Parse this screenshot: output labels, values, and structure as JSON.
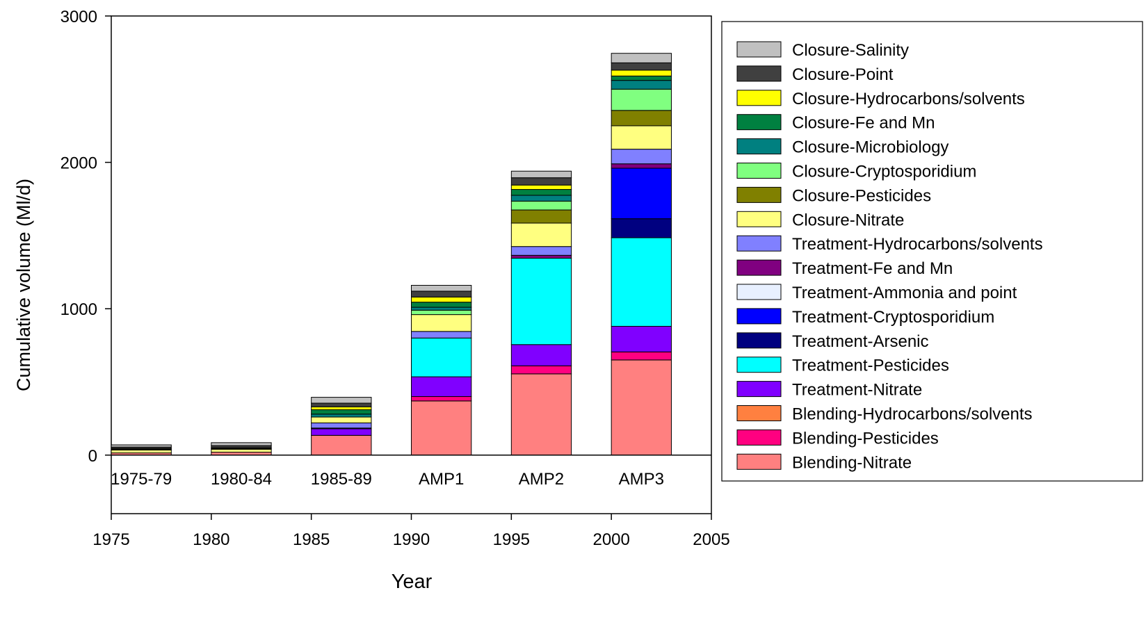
{
  "chart_data": {
    "type": "bar",
    "stacked": true,
    "title": "",
    "xlabel": "Year",
    "ylabel": "Cumulative volume (Ml/d)",
    "xlim": [
      1975,
      2005
    ],
    "ylim": [
      -400,
      3000
    ],
    "x_ticks": [
      1975,
      1980,
      1985,
      1990,
      1995,
      2000,
      2005
    ],
    "y_ticks": [
      0,
      1000,
      2000,
      3000
    ],
    "legend_position": "right",
    "grid": false,
    "categories": [
      "1975-79",
      "1980-84",
      "1985-89",
      "AMP1",
      "AMP2",
      "AMP3"
    ],
    "category_x_ranges": [
      [
        1975,
        1978
      ],
      [
        1980,
        1983
      ],
      [
        1985,
        1988
      ],
      [
        1990,
        1993
      ],
      [
        1995,
        1998
      ],
      [
        2000,
        2003
      ]
    ],
    "series": [
      {
        "name": "Blending-Nitrate",
        "color": "#ff8080",
        "values": [
          15,
          20,
          135,
          370,
          555,
          650
        ]
      },
      {
        "name": "Blending-Pesticides",
        "color": "#ff0080",
        "values": [
          0,
          0,
          0,
          30,
          55,
          55
        ]
      },
      {
        "name": "Blending-Hydrocarbons/solvents",
        "color": "#ff8040",
        "values": [
          0,
          0,
          0,
          0,
          0,
          0
        ]
      },
      {
        "name": "Treatment-Nitrate",
        "color": "#8000ff",
        "values": [
          0,
          0,
          45,
          135,
          145,
          175
        ]
      },
      {
        "name": "Treatment-Pesticides",
        "color": "#00ffff",
        "values": [
          0,
          0,
          5,
          265,
          590,
          605
        ]
      },
      {
        "name": "Treatment-Arsenic",
        "color": "#000080",
        "values": [
          0,
          0,
          0,
          0,
          0,
          130
        ]
      },
      {
        "name": "Treatment-Cryptosporidium",
        "color": "#0000ff",
        "values": [
          0,
          0,
          0,
          0,
          0,
          345
        ]
      },
      {
        "name": "Treatment-Ammonia and point",
        "color": "#e8f0ff",
        "values": [
          0,
          0,
          0,
          0,
          0,
          0
        ]
      },
      {
        "name": "Treatment-Fe and Mn",
        "color": "#800080",
        "values": [
          0,
          0,
          0,
          0,
          20,
          30
        ]
      },
      {
        "name": "Treatment-Hydrocarbons/solvents",
        "color": "#8080ff",
        "values": [
          0,
          0,
          35,
          45,
          60,
          100
        ]
      },
      {
        "name": "Closure-Nitrate",
        "color": "#ffff80",
        "values": [
          20,
          20,
          40,
          115,
          160,
          160
        ]
      },
      {
        "name": "Closure-Pesticides",
        "color": "#808000",
        "values": [
          0,
          0,
          0,
          0,
          90,
          105
        ]
      },
      {
        "name": "Closure-Cryptosporidium",
        "color": "#80ff80",
        "values": [
          0,
          0,
          0,
          30,
          60,
          145
        ]
      },
      {
        "name": "Closure-Microbiology",
        "color": "#008080",
        "values": [
          0,
          0,
          20,
          20,
          40,
          60
        ]
      },
      {
        "name": "Closure-Fe and Mn",
        "color": "#008040",
        "values": [
          5,
          5,
          30,
          35,
          40,
          30
        ]
      },
      {
        "name": "Closure-Hydrocarbons/solvents",
        "color": "#ffff00",
        "values": [
          5,
          5,
          20,
          35,
          30,
          40
        ]
      },
      {
        "name": "Closure-Point",
        "color": "#404040",
        "values": [
          10,
          15,
          25,
          40,
          50,
          50
        ]
      },
      {
        "name": "Closure-Salinity",
        "color": "#c0c0c0",
        "values": [
          15,
          20,
          40,
          40,
          45,
          65
        ]
      }
    ]
  }
}
